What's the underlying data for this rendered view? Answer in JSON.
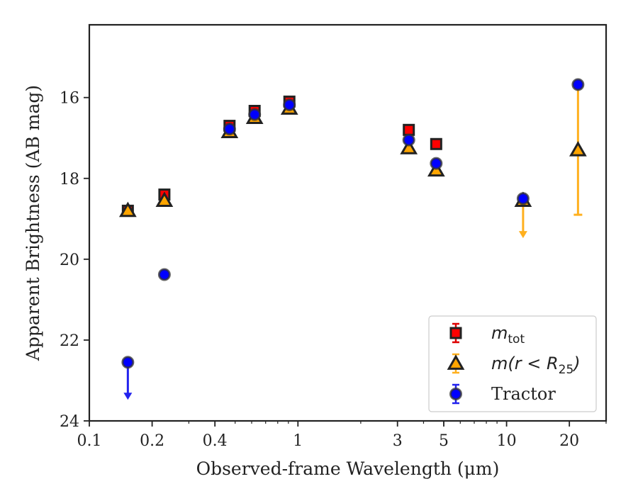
{
  "chart_data": {
    "type": "scatter",
    "xlabel": "Observed-frame Wavelength (μm)",
    "ylabel": "Apparent Brightness (AB mag)",
    "x_scale": "log",
    "y_inverted": true,
    "xlim": [
      0.1,
      30
    ],
    "ylim": [
      24,
      14.2
    ],
    "x_ticks": [
      {
        "value": 0.1,
        "label": "0.1"
      },
      {
        "value": 0.2,
        "label": "0.2"
      },
      {
        "value": 0.4,
        "label": "0.4"
      },
      {
        "value": 1,
        "label": "1"
      },
      {
        "value": 3,
        "label": "3"
      },
      {
        "value": 5,
        "label": "5"
      },
      {
        "value": 10,
        "label": "10"
      },
      {
        "value": 20,
        "label": "20"
      }
    ],
    "y_ticks": [
      16,
      18,
      20,
      22,
      24
    ],
    "legend_position": "lower-right",
    "series": [
      {
        "name": "m_tot",
        "label_main": "m",
        "label_sub": "tot",
        "marker": "square",
        "color": "#ff0000",
        "errcolor": "#dd0000",
        "points": [
          {
            "x": 0.153,
            "y": 18.8
          },
          {
            "x": 0.229,
            "y": 18.4
          },
          {
            "x": 0.47,
            "y": 16.7
          },
          {
            "x": 0.62,
            "y": 16.33
          },
          {
            "x": 0.91,
            "y": 16.1
          },
          {
            "x": 3.4,
            "y": 16.8
          },
          {
            "x": 4.6,
            "y": 17.15
          }
        ]
      },
      {
        "name": "m(r < R_25)",
        "label_math": "m(r < R",
        "label_sub": "25",
        "label_tail": ")",
        "marker": "triangle",
        "color": "#ffa500",
        "errcolor": "#ffb01e",
        "points": [
          {
            "x": 0.153,
            "y": 18.8
          },
          {
            "x": 0.229,
            "y": 18.55
          },
          {
            "x": 0.47,
            "y": 16.85
          },
          {
            "x": 0.62,
            "y": 16.5
          },
          {
            "x": 0.91,
            "y": 16.27
          },
          {
            "x": 3.4,
            "y": 17.25
          },
          {
            "x": 4.6,
            "y": 17.8
          },
          {
            "x": 12,
            "y": 18.55,
            "upper_limit": true
          },
          {
            "x": 22,
            "y": 17.3,
            "err": [
              15.7,
              18.9
            ]
          }
        ]
      },
      {
        "name": "Tractor",
        "label": "Tractor",
        "marker": "circle",
        "color": "#0000ff",
        "errcolor": "#2222ee",
        "points": [
          {
            "x": 0.153,
            "y": 22.55,
            "upper_limit": true
          },
          {
            "x": 0.229,
            "y": 20.38
          },
          {
            "x": 0.47,
            "y": 16.78
          },
          {
            "x": 0.62,
            "y": 16.42
          },
          {
            "x": 0.91,
            "y": 16.18
          },
          {
            "x": 3.4,
            "y": 17.05
          },
          {
            "x": 4.6,
            "y": 17.63
          },
          {
            "x": 12,
            "y": 18.5
          },
          {
            "x": 22,
            "y": 15.68
          }
        ]
      }
    ]
  }
}
